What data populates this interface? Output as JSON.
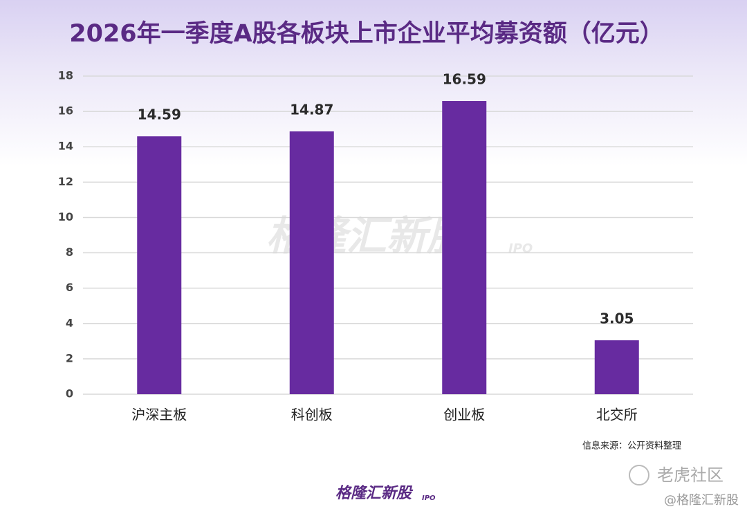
{
  "chart_data": {
    "type": "bar",
    "title": "2026年一季度A股各板块上市企业平均募资额（亿元）",
    "categories": [
      "沪深主板",
      "科创板",
      "创业板",
      "北交所"
    ],
    "values": [
      14.59,
      14.87,
      16.59,
      3.05
    ],
    "color": "#672ba0",
    "ylim": [
      0,
      18
    ],
    "yticks": [
      0,
      2,
      4,
      6,
      8,
      10,
      12,
      14,
      16,
      18
    ],
    "grid": true,
    "source": "信息来源：公开资料整理",
    "watermark": "格隆汇新股",
    "logo": {
      "text": "格隆汇新股",
      "suffix": "IPO"
    },
    "platform": "老虎社区",
    "handle": "@格隆汇新股"
  }
}
